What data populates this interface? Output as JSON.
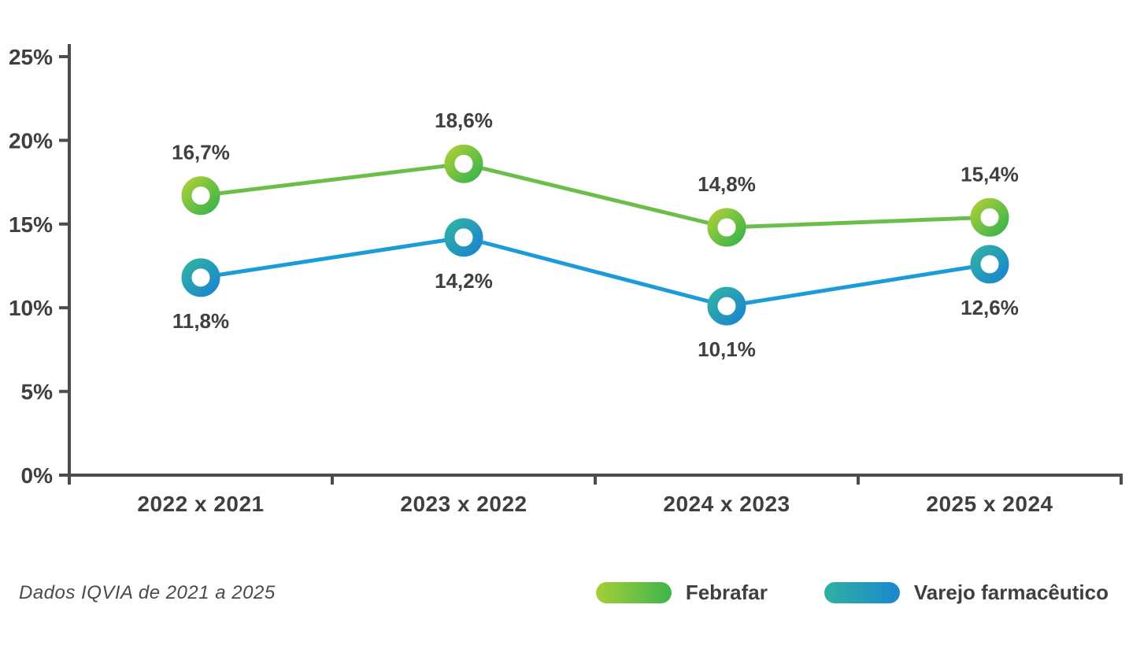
{
  "chart_data": {
    "type": "line",
    "title": "",
    "categories": [
      "2022 x 2021",
      "2023 x 2022",
      "2024 x 2023",
      "2025 x 2024"
    ],
    "series": [
      {
        "name": "Febrafar",
        "values": [
          16.7,
          18.6,
          14.8,
          15.4
        ],
        "labels": [
          "16,7%",
          "18,6%",
          "14,8%",
          "15,4%"
        ],
        "line_color": "#6CBE4B",
        "marker_gradient": [
          "#A6CE39",
          "#3DB54A"
        ],
        "label_position": "above"
      },
      {
        "name": "Varejo farmacêutico",
        "values": [
          11.8,
          14.2,
          10.1,
          12.6
        ],
        "labels": [
          "11,8%",
          "14,2%",
          "10,1%",
          "12,6%"
        ],
        "line_color": "#1B9CD9",
        "marker_gradient": [
          "#2FB0A4",
          "#1B87CE"
        ],
        "label_position": "below"
      }
    ],
    "ylim": [
      0,
      25
    ],
    "yticks": [
      0,
      5,
      10,
      15,
      20,
      25
    ],
    "ytick_labels": [
      "0%",
      "5%",
      "10%",
      "15%",
      "20%",
      "25%"
    ],
    "xlabel": "",
    "ylabel": "",
    "grid": false,
    "legend_position": "bottom-right"
  },
  "footer": {
    "note": "Dados IQVIA de 2021 a 2025"
  },
  "colors": {
    "axis": "#4D4D4D",
    "text": "#3F3F3F"
  }
}
